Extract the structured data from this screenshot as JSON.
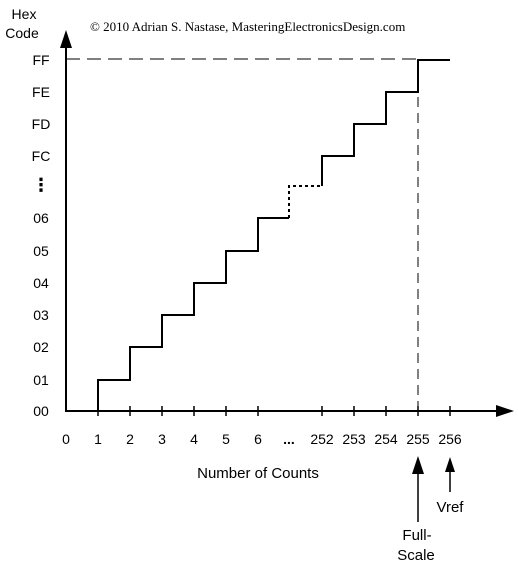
{
  "copyright": "© 2010 Adrian S. Nastase, MasteringElectronicsDesign.com",
  "y_axis": {
    "title_line1": "Hex",
    "title_line2": "Code",
    "ticks": [
      "00",
      "01",
      "02",
      "03",
      "04",
      "05",
      "06",
      "⋮",
      "FC",
      "FD",
      "FE",
      "FF"
    ]
  },
  "x_axis": {
    "title": "Number of Counts",
    "ticks": [
      "0",
      "1",
      "2",
      "3",
      "4",
      "5",
      "6",
      "...",
      "252",
      "253",
      "254",
      "255",
      "256"
    ]
  },
  "annotations": {
    "full_scale_line1": "Full-",
    "full_scale_line2": "Scale",
    "vref": "Vref"
  },
  "chart_data": {
    "type": "line",
    "title": "",
    "xlabel": "Number of Counts",
    "ylabel": "Hex Code",
    "series": [
      {
        "x": [
          0,
          1,
          2,
          3,
          4,
          5,
          6,
          252,
          253,
          254,
          255,
          256
        ],
        "y": [
          "00",
          "01",
          "02",
          "03",
          "04",
          "05",
          "06",
          "FC",
          "FD",
          "FE",
          "FF",
          "FF"
        ]
      }
    ],
    "gap_between": [
      "6",
      "252"
    ],
    "reference_line": {
      "x": "255",
      "y": "FF",
      "style": "dashed"
    }
  }
}
